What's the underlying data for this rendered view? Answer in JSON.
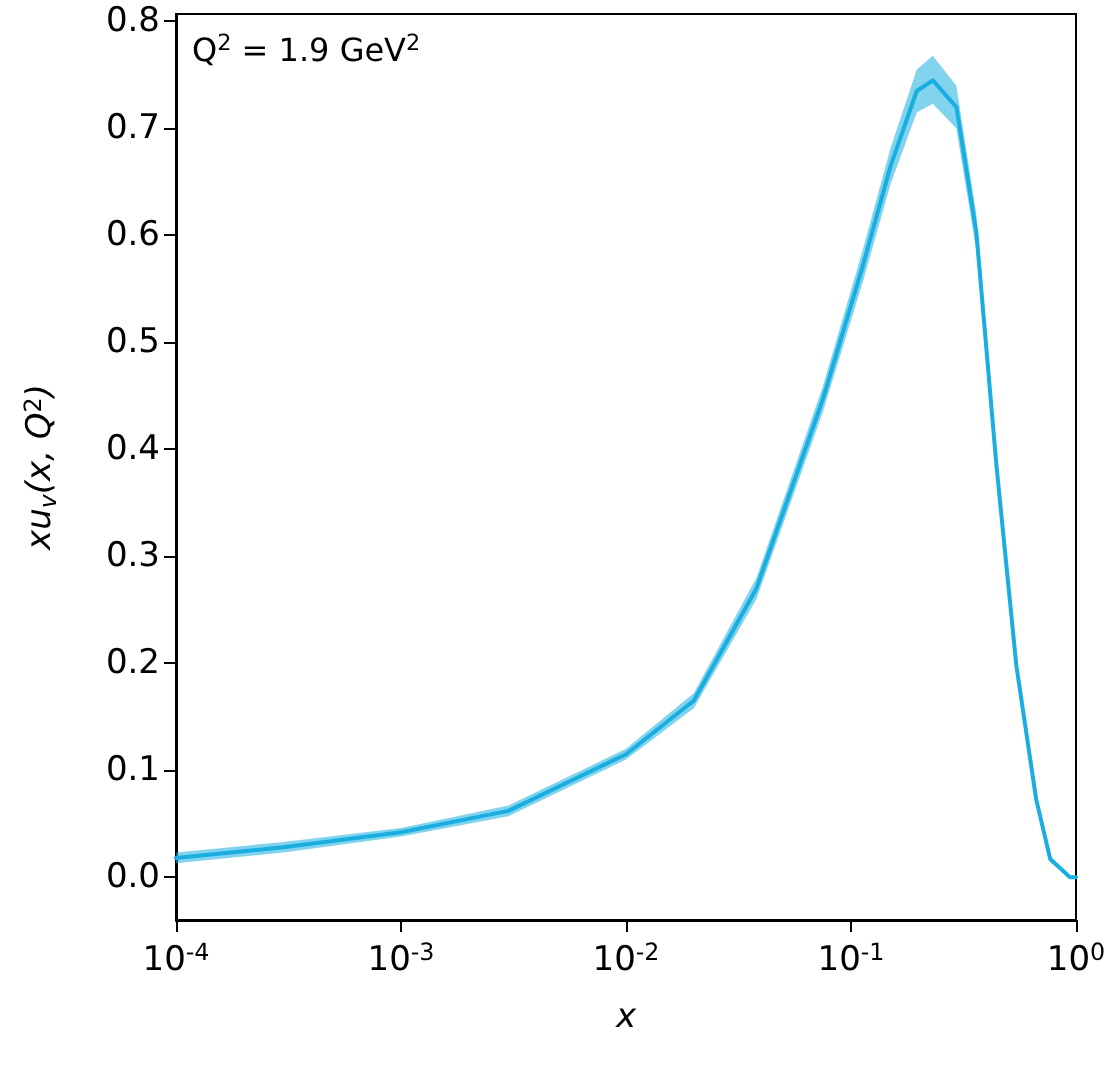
{
  "chart_data": {
    "type": "line",
    "annotations": [
      "Q$^{2}$ = 1.9 GeV$^{2}$"
    ],
    "xlabel": "x",
    "ylabel": "xu$_{v}$(x, Q$^{2}$)",
    "log": "x",
    "xlim": [
      0.0001,
      1
    ],
    "ylim": [
      -0.04,
      0.807
    ],
    "xticks": [
      {
        "value": 0.0001,
        "label": "10$^{-4}$"
      },
      {
        "value": 0.001,
        "label": "10$^{-3}$"
      },
      {
        "value": 0.01,
        "label": "10$^{-2}$"
      },
      {
        "value": 0.1,
        "label": "10$^{-1}$"
      },
      {
        "value": 1,
        "label": "10$^{0}$"
      }
    ],
    "yticks": [
      {
        "value": 0,
        "label": "0.0"
      },
      {
        "value": 0.1,
        "label": "0.1"
      },
      {
        "value": 0.2,
        "label": "0.2"
      },
      {
        "value": 0.3,
        "label": "0.3"
      },
      {
        "value": 0.4,
        "label": "0.4"
      },
      {
        "value": 0.5,
        "label": "0.5"
      },
      {
        "value": 0.6,
        "label": "0.6"
      },
      {
        "value": 0.7,
        "label": "0.7"
      },
      {
        "value": 0.8,
        "label": "0.8"
      }
    ],
    "marker": "none",
    "line_style": "solid",
    "series": [
      {
        "color": "#1aaee0",
        "x": [
          0.0001,
          0.0003,
          0.001,
          0.003,
          0.01,
          0.02,
          0.038,
          0.075,
          0.113,
          0.15,
          0.196,
          0.231,
          0.294,
          0.361,
          0.443,
          0.543,
          0.665,
          0.768,
          0.94,
          1
        ],
        "values": [
          0.018,
          0.028,
          0.042,
          0.062,
          0.115,
          0.165,
          0.27,
          0.447,
          0.572,
          0.665,
          0.735,
          0.745,
          0.72,
          0.602,
          0.385,
          0.198,
          0.073,
          0.017,
          0.0,
          0.0
        ],
        "lower": [
          0.013,
          0.023,
          0.038,
          0.057,
          0.11,
          0.158,
          0.26,
          0.435,
          0.557,
          0.648,
          0.715,
          0.723,
          0.7,
          0.585,
          0.372,
          0.19,
          0.068,
          0.014,
          0.0,
          0.0
        ],
        "upper": [
          0.023,
          0.033,
          0.046,
          0.067,
          0.12,
          0.172,
          0.28,
          0.459,
          0.587,
          0.682,
          0.755,
          0.768,
          0.74,
          0.619,
          0.398,
          0.206,
          0.078,
          0.02,
          0.0,
          0.0
        ]
      }
    ]
  }
}
